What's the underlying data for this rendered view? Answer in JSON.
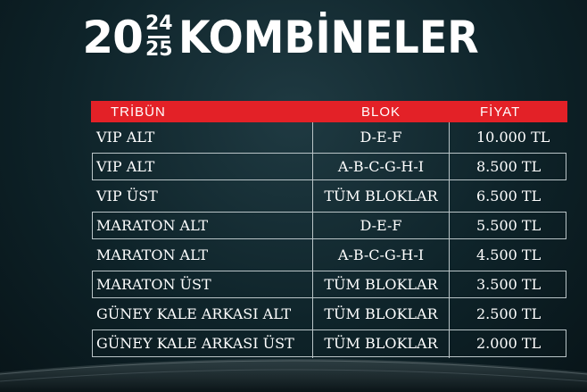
{
  "title": {
    "year_prefix": "20",
    "year_top": "24",
    "year_bottom": "25",
    "word": "KOMBİNELER"
  },
  "table": {
    "headers": [
      "TRİBÜN",
      "BLOK",
      "FİYAT"
    ],
    "rows": [
      {
        "tribun": "VIP ALT",
        "blok": "D-E-F",
        "fiyat": "10.000 TL",
        "boxed": false
      },
      {
        "tribun": "VIP ALT",
        "blok": "A-B-C-G-H-I",
        "fiyat": "8.500 TL",
        "boxed": true
      },
      {
        "tribun": "VIP ÜST",
        "blok": "TÜM BLOKLAR",
        "fiyat": "6.500 TL",
        "boxed": false
      },
      {
        "tribun": "MARATON ALT",
        "blok": "D-E-F",
        "fiyat": "5.500 TL",
        "boxed": true
      },
      {
        "tribun": "MARATON ALT",
        "blok": "A-B-C-G-H-I",
        "fiyat": "4.500 TL",
        "boxed": false
      },
      {
        "tribun": "MARATON ÜST",
        "blok": "TÜM BLOKLAR",
        "fiyat": "3.500 TL",
        "boxed": true
      },
      {
        "tribun": "GÜNEY KALE ARKASI ALT",
        "blok": "TÜM BLOKLAR",
        "fiyat": "2.500 TL",
        "boxed": false
      },
      {
        "tribun": "GÜNEY KALE ARKASI ÜST",
        "blok": "TÜM BLOKLAR",
        "fiyat": "2.000 TL",
        "boxed": true
      }
    ]
  },
  "colors": {
    "header_red": "#e32127",
    "background": "#0e2329"
  }
}
